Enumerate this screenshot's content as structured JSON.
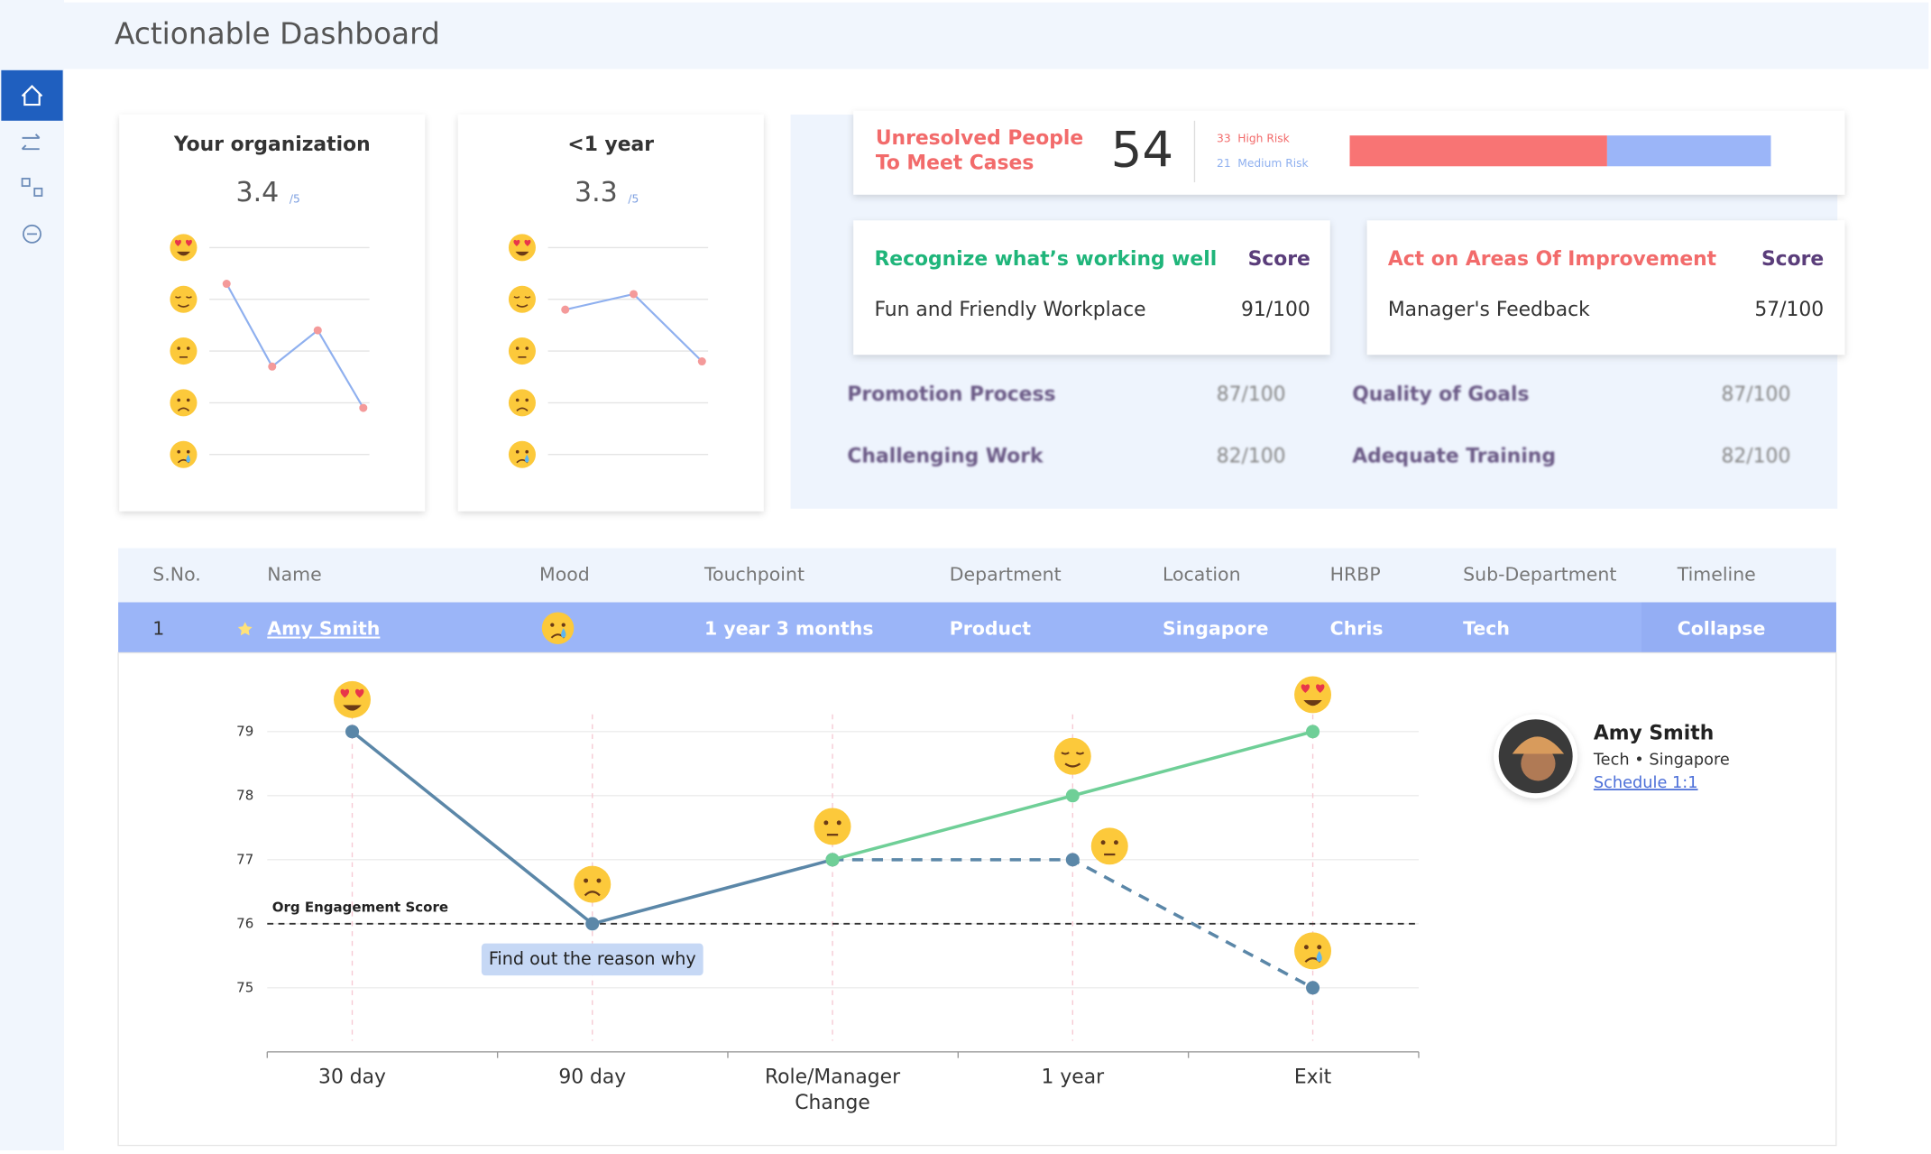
{
  "header": {
    "title": "Actionable Dashboard"
  },
  "cards": [
    {
      "title": "Your organization",
      "score": 3.4,
      "scale": "/5",
      "values": [
        4.3,
        2.7,
        3.4,
        1.9
      ]
    },
    {
      "title": "<1 year",
      "score": 3.3,
      "scale": "/5",
      "values": [
        3.8,
        4.1,
        2.8
      ]
    }
  ],
  "cases": {
    "title": [
      "Unresolved People",
      "To Meet Cases"
    ],
    "count": 54,
    "high": {
      "value": 33,
      "label": "High Risk"
    },
    "medium": {
      "value": 21,
      "label": "Medium Risk"
    }
  },
  "strengths": {
    "heading": "Recognize what’s working well",
    "score_heading": "Score",
    "item": "Fun and Friendly Workplace",
    "score": "91/100"
  },
  "improvements": {
    "heading": "Act on Areas Of Improvement",
    "score_heading": "Score",
    "item": "Manager's Feedback",
    "score": "57/100"
  },
  "other_scores": [
    {
      "name": "Promotion Process",
      "score": "87/100"
    },
    {
      "name": "Quality of Goals",
      "score": "87/100"
    },
    {
      "name": "Challenging Work",
      "score": "82/100"
    },
    {
      "name": "Adequate Training",
      "score": "82/100"
    }
  ],
  "table": {
    "headers": [
      "S.No.",
      "Name",
      "Mood",
      "Touchpoint",
      "Department",
      "Location",
      "HRBP",
      "Sub-Department",
      "Timeline"
    ],
    "rows": [
      {
        "sno": 1,
        "name": "Amy Smith",
        "touchpoint": "1 year 3 months",
        "department": "Product",
        "location": "Singapore",
        "hrbp": "Chris",
        "sub_department": "Tech",
        "timeline": "Collapse"
      }
    ]
  },
  "profile": {
    "name": "Amy Smith",
    "meta": "Tech • Singapore",
    "action": "Schedule 1:1"
  },
  "chart_data": {
    "type": "line",
    "categories": [
      "30 day",
      "90 day",
      "Role/Manager Change",
      "1 year",
      "Exit"
    ],
    "series": [
      {
        "color": "#5b87a8",
        "style": "solid",
        "values": [
          79,
          76,
          77,
          null,
          null
        ]
      },
      {
        "color": "#5b87a8",
        "style": "dashed",
        "values": [
          null,
          null,
          77,
          77,
          75
        ]
      },
      {
        "color": "#6fcf97",
        "style": "solid",
        "values": [
          null,
          null,
          77,
          78,
          79
        ]
      }
    ],
    "ylim": [
      74,
      80
    ],
    "yticks": [
      75,
      76,
      77,
      78,
      79
    ],
    "reference": {
      "label": "Org Engagement Score",
      "value": 76
    },
    "annotation": "Find out the reason why"
  }
}
